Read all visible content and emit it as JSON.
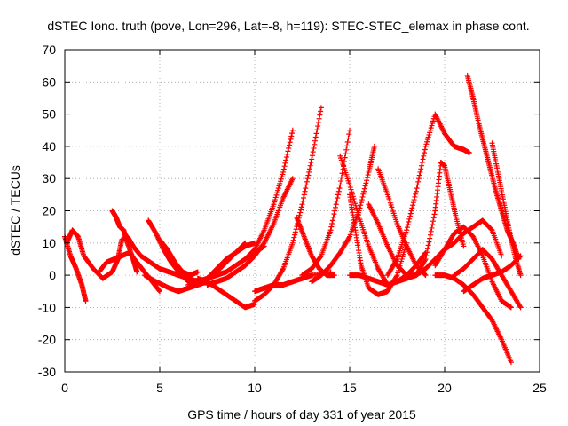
{
  "chart_data": {
    "type": "scatter",
    "title": "dSTEC Iono. truth (pove, Lon=296, Lat=-8, h=119): STEC-STEC_elemax in phase cont.",
    "xlabel": "GPS time / hours of day 331 of year 2015",
    "ylabel": "dSTEC  / TECUs",
    "xlim": [
      0,
      25
    ],
    "ylim": [
      -30,
      70
    ],
    "xticks": [
      0,
      5,
      10,
      15,
      20,
      25
    ],
    "yticks": [
      -30,
      -20,
      -10,
      0,
      10,
      20,
      30,
      40,
      50,
      60,
      70
    ],
    "grid": true,
    "marker": "+",
    "color": "#ff0000",
    "series": [
      {
        "x": [
          0.0,
          0.3,
          0.6,
          0.9,
          1.1
        ],
        "y": [
          12,
          6,
          2,
          -3,
          -8
        ]
      },
      {
        "x": [
          0.1,
          0.4,
          0.7,
          1.0,
          1.5,
          2.0,
          2.5,
          2.8,
          3.0,
          3.3,
          3.6,
          4.0,
          4.5,
          5.0,
          5.5,
          6.0,
          6.5,
          7.0
        ],
        "y": [
          10,
          14,
          12,
          6,
          2,
          -1,
          1,
          5,
          11,
          12,
          9,
          6,
          4,
          2,
          1,
          0,
          -1,
          -2
        ]
      },
      {
        "x": [
          2.5,
          2.7,
          2.9,
          3.1,
          3.3,
          3.6,
          3.8
        ],
        "y": [
          20,
          18,
          15,
          14,
          10,
          5,
          1
        ]
      },
      {
        "x": [
          1.8,
          2.2,
          2.6,
          3.0,
          3.4,
          3.8,
          4.2,
          4.6,
          5.0
        ],
        "y": [
          1,
          4,
          5,
          6,
          7,
          4,
          1,
          -2,
          -5
        ]
      },
      {
        "x": [
          4.4,
          4.8,
          5.2,
          5.6,
          6.0,
          6.5,
          7.0,
          7.5
        ],
        "y": [
          17,
          13,
          8,
          4,
          1,
          -2,
          -3,
          -2
        ]
      },
      {
        "x": [
          5.0,
          5.4,
          5.8,
          6.2,
          6.6,
          7.0
        ],
        "y": [
          11,
          8,
          4,
          1,
          0,
          1
        ]
      },
      {
        "x": [
          4.2,
          4.8,
          5.5,
          6.0,
          6.5,
          7.0,
          7.5,
          8.0,
          8.5,
          9.0,
          9.5
        ],
        "y": [
          0,
          -2,
          -4,
          -5,
          -4,
          -3,
          -1,
          1,
          4,
          7,
          10
        ]
      },
      {
        "x": [
          6.5,
          7.0,
          7.5,
          8.0,
          8.5,
          9.0,
          9.5,
          10.0,
          10.5
        ],
        "y": [
          -3,
          -2,
          -1,
          0,
          1,
          3,
          5,
          7,
          9
        ]
      },
      {
        "x": [
          7.5,
          8.0,
          8.5,
          9.0,
          9.5,
          10.0
        ],
        "y": [
          -1,
          2,
          5,
          7,
          9,
          10
        ]
      },
      {
        "x": [
          7.0,
          7.5,
          8.0,
          8.5,
          9.0,
          9.5,
          10.0
        ],
        "y": [
          -1,
          -2,
          -4,
          -6,
          -8,
          -10,
          -9
        ]
      },
      {
        "x": [
          7.5,
          8.0,
          8.5,
          9.0,
          9.5,
          10.0,
          10.5,
          11.0,
          11.5,
          12.0
        ],
        "y": [
          -3,
          -2,
          -1,
          1,
          3,
          6,
          10,
          16,
          24,
          30
        ]
      },
      {
        "x": [
          9.5,
          10.0,
          10.5,
          11.0,
          11.5,
          12.0
        ],
        "y": [
          5,
          8,
          14,
          22,
          32,
          45
        ]
      },
      {
        "x": [
          10.0,
          10.5,
          11.0,
          11.5,
          12.0,
          12.5,
          13.0,
          13.5
        ],
        "y": [
          -8,
          -6,
          -3,
          2,
          10,
          22,
          36,
          52
        ]
      },
      {
        "x": [
          10.0,
          10.5,
          11.0,
          11.5,
          12.0,
          12.5,
          13.0,
          14.0
        ],
        "y": [
          -5,
          -4,
          -3,
          -3,
          -2,
          -1,
          0,
          1
        ]
      },
      {
        "x": [
          12.2,
          12.6,
          13.0,
          13.4,
          13.8,
          14.2
        ],
        "y": [
          18,
          12,
          6,
          2,
          0,
          0
        ]
      },
      {
        "x": [
          12.5,
          13.0,
          13.5,
          14.0,
          14.5,
          15.0
        ],
        "y": [
          0,
          2,
          6,
          14,
          28,
          45
        ]
      },
      {
        "x": [
          13.0,
          13.5,
          14.0,
          14.5,
          15.0,
          15.5,
          16.0,
          16.3
        ],
        "y": [
          -2,
          0,
          3,
          7,
          12,
          20,
          32,
          40
        ]
      },
      {
        "x": [
          14.5,
          15.0,
          15.5,
          16.0,
          16.5,
          17.0
        ],
        "y": [
          37,
          28,
          18,
          9,
          2,
          -3
        ]
      },
      {
        "x": [
          15.0,
          15.3,
          15.6,
          16.0,
          16.5,
          17.0,
          17.5,
          18.0
        ],
        "y": [
          25,
          14,
          3,
          -4,
          -6,
          -5,
          0,
          10
        ]
      },
      {
        "x": [
          16.0,
          16.5,
          17.0,
          17.5,
          18.0,
          18.5
        ],
        "y": [
          22,
          16,
          9,
          3,
          0,
          0
        ]
      },
      {
        "x": [
          15.0,
          15.5,
          16.0,
          16.5,
          17.0,
          17.5,
          18.0,
          18.5,
          19.0
        ],
        "y": [
          0,
          0,
          -1,
          -2,
          -3,
          -2,
          0,
          3,
          7
        ]
      },
      {
        "x": [
          16.5,
          17.0,
          17.5,
          18.0,
          18.5,
          19.0
        ],
        "y": [
          33,
          25,
          16,
          9,
          3,
          0
        ]
      },
      {
        "x": [
          17.0,
          17.5,
          18.0,
          18.5,
          19.0,
          19.5,
          20.0,
          20.5,
          21.0,
          21.3
        ],
        "y": [
          0,
          5,
          14,
          26,
          40,
          50,
          44,
          40,
          39,
          38
        ]
      },
      {
        "x": [
          17.5,
          18.0,
          18.5,
          19.0,
          19.5,
          20.0,
          20.5,
          21.0,
          21.5,
          22.0,
          22.5,
          23.0
        ],
        "y": [
          -2,
          -1,
          0,
          2,
          5,
          8,
          10,
          13,
          15,
          17,
          14,
          6
        ]
      },
      {
        "x": [
          18.5,
          19.0,
          19.5,
          19.8,
          20.0,
          20.3,
          20.6,
          21.0
        ],
        "y": [
          0,
          5,
          20,
          35,
          34,
          26,
          18,
          9
        ]
      },
      {
        "x": [
          19.5,
          20.0,
          20.5,
          21.0,
          21.5,
          22.0,
          22.5,
          23.0,
          23.5
        ],
        "y": [
          3,
          8,
          13,
          15,
          12,
          6,
          -2,
          -8,
          -10
        ]
      },
      {
        "x": [
          19.5,
          20.0,
          20.5,
          21.0,
          21.5,
          22.0,
          22.5,
          23.0,
          23.5
        ],
        "y": [
          0,
          0,
          -1,
          -3,
          -6,
          -10,
          -14,
          -20,
          -27
        ]
      },
      {
        "x": [
          21.2,
          21.5,
          21.8,
          22.1,
          22.4,
          22.7,
          23.0,
          23.3,
          23.6,
          23.9
        ],
        "y": [
          62,
          55,
          47,
          40,
          33,
          26,
          20,
          14,
          10,
          5
        ]
      },
      {
        "x": [
          22.5,
          22.8,
          23.1,
          23.4,
          23.7,
          24.0
        ],
        "y": [
          41,
          32,
          23,
          14,
          6,
          0
        ]
      },
      {
        "x": [
          21.0,
          21.5,
          22.0,
          22.5,
          23.0,
          23.5,
          24.0
        ],
        "y": [
          -5,
          -3,
          -1,
          0,
          1,
          3,
          6
        ]
      },
      {
        "x": [
          20.5,
          21.0,
          21.5,
          22.0,
          22.5,
          23.0,
          23.5,
          24.0
        ],
        "y": [
          0,
          2,
          5,
          8,
          5,
          0,
          -5,
          -10
        ]
      }
    ]
  }
}
